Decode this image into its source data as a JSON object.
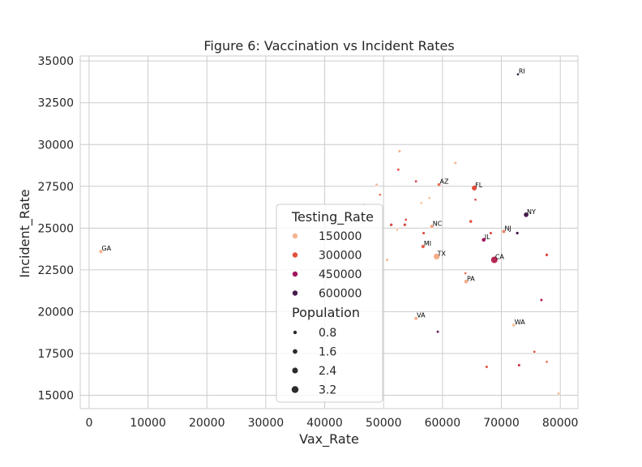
{
  "chart_data": {
    "type": "scatter",
    "title": "Figure 6: Vaccination vs Incident Rates",
    "xlabel": "Vax_Rate",
    "ylabel": "Incident_Rate",
    "xlim": [
      -1500,
      83000
    ],
    "ylim": [
      14200,
      35300
    ],
    "xticks": [
      0,
      10000,
      20000,
      30000,
      40000,
      50000,
      60000,
      70000,
      80000
    ],
    "yticks": [
      15000,
      17500,
      20000,
      22500,
      25000,
      27500,
      30000,
      32500,
      35000
    ],
    "grid": true,
    "hue_variable": "Testing_Rate",
    "size_variable": "Population",
    "color_scale": {
      "stops": [
        {
          "value": 30000,
          "color": "#f7c6a4"
        },
        {
          "value": 150000,
          "color": "#f6b48f"
        },
        {
          "value": 300000,
          "color": "#e34f3c"
        },
        {
          "value": 450000,
          "color": "#a1155f"
        },
        {
          "value": 600000,
          "color": "#461b4d"
        },
        {
          "value": 700000,
          "color": "#2a1338"
        }
      ]
    },
    "size_scale": {
      "min_value": 0,
      "max_value": 3.6,
      "min_radius": 1.5,
      "max_radius": 4.6
    },
    "legend": {
      "placement": "center",
      "hue_title": "Testing_Rate",
      "hue_entries": [
        {
          "label": "150000",
          "value": 150000
        },
        {
          "label": "300000",
          "value": 300000
        },
        {
          "label": "450000",
          "value": 450000
        },
        {
          "label": "600000",
          "value": 600000
        }
      ],
      "size_title": "Population",
      "size_entries": [
        {
          "label": "0.8",
          "value": 0.8
        },
        {
          "label": "1.6",
          "value": 1.6
        },
        {
          "label": "2.4",
          "value": 2.4
        },
        {
          "label": "3.2",
          "value": 3.2
        }
      ]
    },
    "points": [
      {
        "label": "RI",
        "x": 72800,
        "y": 34200,
        "testing": 700000,
        "population": 0.1
      },
      {
        "label": "GA",
        "x": 2000,
        "y": 23600,
        "testing": 150000,
        "population": 1.1
      },
      {
        "label": "AZ",
        "x": 59400,
        "y": 27600,
        "testing": 250000,
        "population": 0.8
      },
      {
        "label": "FL",
        "x": 65400,
        "y": 27400,
        "testing": 300000,
        "population": 2.2
      },
      {
        "label": "NY",
        "x": 74200,
        "y": 25800,
        "testing": 600000,
        "population": 1.9
      },
      {
        "label": "NC",
        "x": 58200,
        "y": 25100,
        "testing": 180000,
        "population": 1.0
      },
      {
        "label": "NJ",
        "x": 70400,
        "y": 24800,
        "testing": 220000,
        "population": 0.9
      },
      {
        "label": "IL",
        "x": 67000,
        "y": 24300,
        "testing": 450000,
        "population": 1.3
      },
      {
        "label": "MI",
        "x": 56700,
        "y": 23900,
        "testing": 280000,
        "population": 1.0
      },
      {
        "label": "TX",
        "x": 59000,
        "y": 23300,
        "testing": 160000,
        "population": 2.8
      },
      {
        "label": "CA",
        "x": 68800,
        "y": 23100,
        "testing": 400000,
        "population": 3.3
      },
      {
        "label": "PA",
        "x": 64000,
        "y": 21800,
        "testing": 160000,
        "population": 1.3
      },
      {
        "label": "VA",
        "x": 55500,
        "y": 19600,
        "testing": 160000,
        "population": 0.9
      },
      {
        "label": "WA",
        "x": 72100,
        "y": 19200,
        "testing": 40000,
        "population": 0.9
      },
      {
        "label": "",
        "x": 52700,
        "y": 29600,
        "testing": 150000,
        "population": 0.4
      },
      {
        "label": "",
        "x": 62200,
        "y": 28900,
        "testing": 150000,
        "population": 0.3
      },
      {
        "label": "",
        "x": 52500,
        "y": 28500,
        "testing": 280000,
        "population": 0.3
      },
      {
        "label": "",
        "x": 55500,
        "y": 27800,
        "testing": 340000,
        "population": 0.2
      },
      {
        "label": "",
        "x": 48800,
        "y": 27600,
        "testing": 150000,
        "population": 0.2
      },
      {
        "label": "",
        "x": 49400,
        "y": 27000,
        "testing": 250000,
        "population": 0.15
      },
      {
        "label": "",
        "x": 57800,
        "y": 26800,
        "testing": 100000,
        "population": 0.15
      },
      {
        "label": "",
        "x": 65600,
        "y": 26700,
        "testing": 320000,
        "population": 0.15
      },
      {
        "label": "",
        "x": 56400,
        "y": 26500,
        "testing": 60000,
        "population": 0.2
      },
      {
        "label": "",
        "x": 46700,
        "y": 26400,
        "testing": 150000,
        "population": 0.3
      },
      {
        "label": "",
        "x": 53800,
        "y": 25500,
        "testing": 320000,
        "population": 0.2
      },
      {
        "label": "",
        "x": 64800,
        "y": 25400,
        "testing": 300000,
        "population": 0.6
      },
      {
        "label": "",
        "x": 51300,
        "y": 25200,
        "testing": 320000,
        "population": 0.5
      },
      {
        "label": "",
        "x": 53600,
        "y": 25200,
        "testing": 320000,
        "population": 0.5
      },
      {
        "label": "",
        "x": 52300,
        "y": 24900,
        "testing": 60000,
        "population": 0.2
      },
      {
        "label": "",
        "x": 56800,
        "y": 24700,
        "testing": 320000,
        "population": 0.4
      },
      {
        "label": "",
        "x": 68200,
        "y": 24700,
        "testing": 320000,
        "population": 0.4
      },
      {
        "label": "",
        "x": 72700,
        "y": 24700,
        "testing": 600000,
        "population": 0.5
      },
      {
        "label": "",
        "x": 77700,
        "y": 23400,
        "testing": 320000,
        "population": 0.5
      },
      {
        "label": "",
        "x": 50600,
        "y": 23100,
        "testing": 150000,
        "population": 0.3
      },
      {
        "label": "",
        "x": 63900,
        "y": 22300,
        "testing": 250000,
        "population": 0.2
      },
      {
        "label": "",
        "x": 76800,
        "y": 20700,
        "testing": 400000,
        "population": 0.4
      },
      {
        "label": "",
        "x": 59200,
        "y": 18800,
        "testing": 550000,
        "population": 0.3
      },
      {
        "label": "",
        "x": 75600,
        "y": 17600,
        "testing": 300000,
        "population": 0.2
      },
      {
        "label": "",
        "x": 77700,
        "y": 17000,
        "testing": 250000,
        "population": 0.2
      },
      {
        "label": "",
        "x": 73000,
        "y": 16800,
        "testing": 360000,
        "population": 0.4
      },
      {
        "label": "",
        "x": 67500,
        "y": 16700,
        "testing": 280000,
        "population": 0.4
      },
      {
        "label": "",
        "x": 79700,
        "y": 15100,
        "testing": 150000,
        "population": 0.2
      }
    ]
  }
}
